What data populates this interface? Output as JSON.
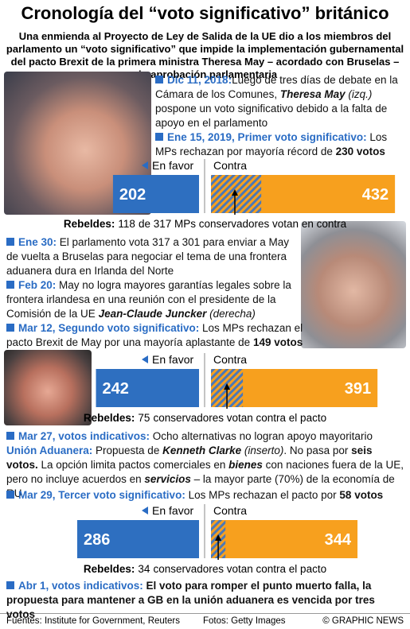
{
  "title": "Cronología del “voto significativo” británico",
  "subtitle": "Una enmienda al Proyecto de Ley de Salida de la UE dio a los miembros del parlamento un “voto significativo” que impide la implementación gubernamental del pacto Brexit de la primera ministra Theresa May – acordado con Bruselas – sin aprobación parlamentaria",
  "vote_labels": {
    "favor": "En favor",
    "contra": "Contra",
    "rebels": "Rebeldes:"
  },
  "entries": [
    {
      "date": "Dic 11, 2018:",
      "bullet": true,
      "runs": [
        {
          "t": "Luego de tres días de debate en la Cámara de los Comunes, "
        },
        {
          "t": "Theresa May",
          "b": true,
          "i": true
        },
        {
          "t": " (izq.)",
          "i": true
        },
        {
          "t": " pospone un voto significativo debido a la falta de apoyo en el parlamento"
        }
      ]
    },
    {
      "date": "Ene 15, 2019, Primer voto significativo:",
      "bullet": true,
      "runs": [
        {
          "t": " Los MPs rechazan por mayoría récord de "
        },
        {
          "t": "230 votos",
          "b": true
        }
      ]
    },
    {
      "date": "Ene 30:",
      "bullet": true,
      "runs": [
        {
          "t": " El parlamento vota 317 a 301 para enviar a May de vuelta a Bruselas para negociar el tema de una frontera aduanera dura en Irlanda del Norte"
        }
      ]
    },
    {
      "date": "Feb 20:",
      "bullet": true,
      "runs": [
        {
          "t": " May no logra mayores garantías legales sobre la frontera irlandesa en una reunión con el presidente de la Comisión de la UE "
        },
        {
          "t": "Jean-Claude Juncker",
          "b": true,
          "i": true
        },
        {
          "t": " (derecha)",
          "i": true
        }
      ]
    },
    {
      "date": "Mar 12, Segundo voto significativo:",
      "bullet": true,
      "runs": [
        {
          "t": " Los MPs rechazan el pacto Brexit de May por una mayoría aplastante de "
        },
        {
          "t": "149 votos",
          "b": true
        }
      ]
    },
    {
      "date": "Mar 27, votos indicativos:",
      "bullet": true,
      "runs": [
        {
          "t": " Ocho alternativas no logran apoyo mayoritario"
        }
      ]
    },
    {
      "date": "Unión Aduanera:",
      "bullet": false,
      "runs": [
        {
          "t": " Propuesta de "
        },
        {
          "t": "Kenneth Clarke",
          "b": true,
          "i": true
        },
        {
          "t": " (inserto)",
          "i": true
        },
        {
          "t": ". No pasa por "
        },
        {
          "t": "seis votos.",
          "b": true
        },
        {
          "t": " La opción limita pactos comerciales en "
        },
        {
          "t": "bienes",
          "b": true,
          "i": true
        },
        {
          "t": " con naciones fuera de la UE, pero no incluye acuerdos en "
        },
        {
          "t": "servicios",
          "b": true,
          "i": true
        },
        {
          "t": " – la mayor parte (70%) de la economía de RU"
        }
      ]
    },
    {
      "date": "Mar 29, Tercer voto significativo:",
      "bullet": true,
      "runs": [
        {
          "t": " Los MPs rechazan el pacto por "
        },
        {
          "t": "58 votos",
          "b": true
        }
      ]
    },
    {
      "date": "Abr 1, votos indicativos:",
      "bullet": true,
      "runs": [
        {
          "t": " El voto para romper el punto muerto falla, la propuesta para mantener a GB en la unión aduanera es vencida por tres votos",
          "b": true
        }
      ]
    }
  ],
  "votes": [
    {
      "favor": 202,
      "contra": 432,
      "rebels": 118,
      "rebels_text": "de 317 MPs conservadores votan en contra"
    },
    {
      "favor": 242,
      "contra": 391,
      "rebels": 75,
      "rebels_text": "conservadores votan contra el pacto"
    },
    {
      "favor": 286,
      "contra": 344,
      "rebels": 34,
      "rebels_text": "conservadores votan contra el pacto"
    }
  ],
  "footer": {
    "sources": "Fuentes: Institute for Government, Reuters",
    "photos": "Fotos: Getty Images",
    "credit": "© GRAPHIC NEWS"
  }
}
